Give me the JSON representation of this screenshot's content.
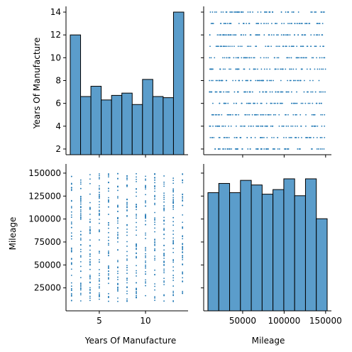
{
  "chart_data": {
    "type": "pairplot",
    "variables": [
      "Years Of Manufacture",
      "Mileage"
    ],
    "color": "#1f77b4",
    "hist_color": "#5b9dcb",
    "panels": [
      {
        "type": "bar",
        "position": "top-left",
        "variable": "Years Of Manufacture",
        "bins": [
          {
            "from": 2.0,
            "to": 3.2,
            "count": 12.0
          },
          {
            "from": 3.2,
            "to": 4.4,
            "count": 6.6
          },
          {
            "from": 4.4,
            "to": 5.6,
            "count": 7.5
          },
          {
            "from": 5.6,
            "to": 6.8,
            "count": 6.3
          },
          {
            "from": 6.8,
            "to": 8.0,
            "count": 6.7
          },
          {
            "from": 8.0,
            "to": 9.2,
            "count": 6.9
          },
          {
            "from": 9.2,
            "to": 10.4,
            "count": 5.9
          },
          {
            "from": 10.4,
            "to": 11.6,
            "count": 8.1
          },
          {
            "from": 11.6,
            "to": 12.8,
            "count": 6.6
          },
          {
            "from": 12.8,
            "to": 14.0,
            "count": 6.5
          },
          {
            "from": 14.0,
            "to": 15.0,
            "count": 14.0
          }
        ],
        "ylabel": "Years Of Manufacture",
        "ylim": [
          1.5,
          14.5
        ],
        "yticks": [
          "2",
          "4",
          "6",
          "8",
          "10",
          "12",
          "14"
        ],
        "ytick_values": [
          2,
          4,
          6,
          8,
          10,
          12,
          14
        ]
      },
      {
        "type": "scatter",
        "position": "top-right",
        "x_variable": "Mileage",
        "y_variable": "Years Of Manufacture",
        "note": "points at every integer year 2-14 spread across mileage 10000-150000"
      },
      {
        "type": "scatter",
        "position": "bottom-left",
        "x_variable": "Years Of Manufacture",
        "y_variable": "Mileage",
        "ylabel": "Mileage",
        "xlabel": "Years Of Manufacture",
        "ylim": [
          0,
          160000
        ],
        "yticks": [
          "25000",
          "50000",
          "75000",
          "100000",
          "125000",
          "150000"
        ],
        "ytick_values": [
          25000,
          50000,
          75000,
          100000,
          125000,
          150000
        ],
        "xlim": [
          1.4,
          14.6
        ],
        "xticks": [
          "5",
          "10"
        ],
        "xtick_values": [
          5,
          10
        ]
      },
      {
        "type": "bar",
        "position": "bottom-right",
        "variable": "Mileage",
        "xlabel": "Mileage",
        "xlim": [
          3000,
          157000
        ],
        "xticks": [
          "50000",
          "100000",
          "150000"
        ],
        "xtick_values": [
          50000,
          100000,
          150000
        ],
        "bins": [
          {
            "from": 10000,
            "to": 24000,
            "count": 77
          },
          {
            "from": 24000,
            "to": 38000,
            "count": 83
          },
          {
            "from": 38000,
            "to": 52000,
            "count": 77
          },
          {
            "from": 52000,
            "to": 66000,
            "count": 85
          },
          {
            "from": 66000,
            "to": 80000,
            "count": 82
          },
          {
            "from": 80000,
            "to": 94000,
            "count": 76
          },
          {
            "from": 94000,
            "to": 108000,
            "count": 79
          },
          {
            "from": 108000,
            "to": 122000,
            "count": 86
          },
          {
            "from": 122000,
            "to": 136000,
            "count": 75
          },
          {
            "from": 136000,
            "to": 150000,
            "count": 86
          },
          {
            "from": 150000,
            "to": 164000,
            "count": 60
          }
        ]
      }
    ]
  }
}
